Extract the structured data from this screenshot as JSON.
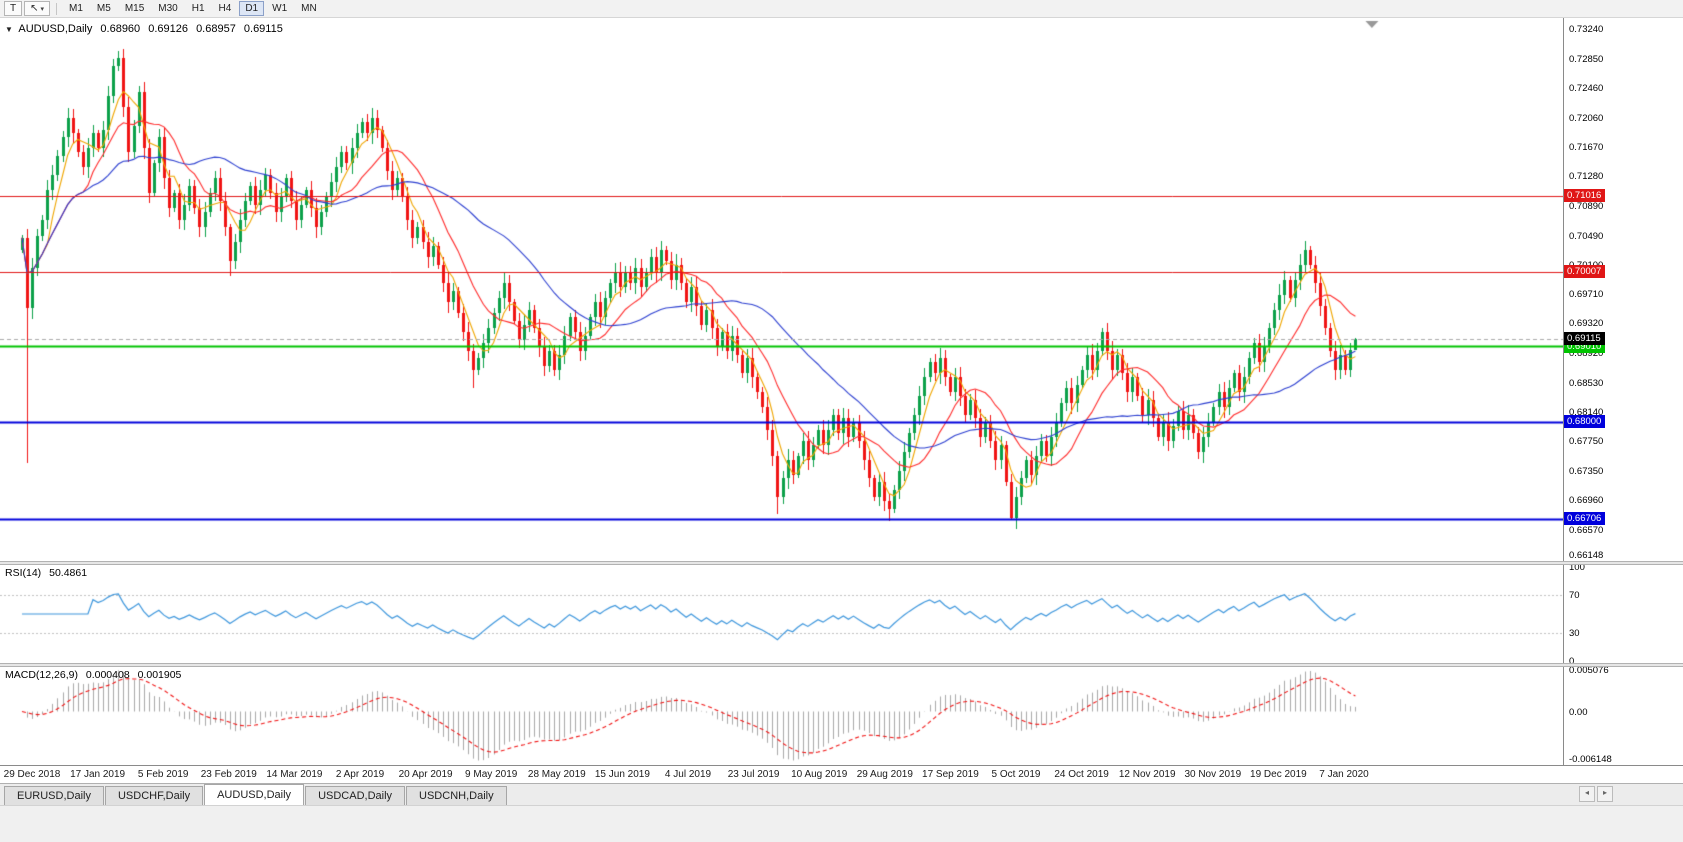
{
  "toolbar": {
    "chart_tool_label": "T",
    "timeframes": [
      "M1",
      "M5",
      "M15",
      "M30",
      "H1",
      "H4",
      "D1",
      "W1",
      "MN"
    ],
    "active_timeframe": "D1"
  },
  "icons": {
    "one_click_collapse": "▼",
    "cursor_tool": "↖",
    "caret_down": "▾",
    "tab_scroll_left": "◂",
    "tab_scroll_right": "▸"
  },
  "chart": {
    "symbol_period": "AUDUSD,Daily",
    "open": "0.68960",
    "high": "0.69126",
    "low": "0.68957",
    "close": "0.69115"
  },
  "chart_data": {
    "type": "candlestick",
    "symbol": "AUDUSD",
    "period": "Daily",
    "up_color": "#0ca14a",
    "down_color": "#f01414",
    "first_open": 0.703,
    "closes": [
      0.7046,
      0.6952,
      0.7005,
      0.7048,
      0.707,
      0.711,
      0.713,
      0.7155,
      0.718,
      0.7205,
      0.7185,
      0.716,
      0.714,
      0.7165,
      0.7185,
      0.7165,
      0.719,
      0.7235,
      0.7275,
      0.7285,
      0.722,
      0.716,
      0.7195,
      0.724,
      0.7165,
      0.7105,
      0.7145,
      0.718,
      0.7125,
      0.7085,
      0.7105,
      0.707,
      0.709,
      0.7115,
      0.7085,
      0.706,
      0.708,
      0.7105,
      0.7125,
      0.7095,
      0.706,
      0.7015,
      0.704,
      0.707,
      0.7095,
      0.7115,
      0.709,
      0.711,
      0.713,
      0.7105,
      0.708,
      0.71,
      0.7125,
      0.7095,
      0.707,
      0.709,
      0.711,
      0.7085,
      0.706,
      0.708,
      0.71,
      0.712,
      0.714,
      0.716,
      0.7145,
      0.7165,
      0.7185,
      0.72,
      0.7185,
      0.7205,
      0.719,
      0.7165,
      0.7135,
      0.711,
      0.7125,
      0.71,
      0.707,
      0.7045,
      0.706,
      0.704,
      0.702,
      0.7035,
      0.701,
      0.6985,
      0.696,
      0.6975,
      0.6945,
      0.692,
      0.6895,
      0.687,
      0.6885,
      0.6905,
      0.6925,
      0.6945,
      0.6965,
      0.6985,
      0.696,
      0.6935,
      0.691,
      0.693,
      0.695,
      0.6925,
      0.69,
      0.6875,
      0.6895,
      0.687,
      0.689,
      0.6915,
      0.694,
      0.692,
      0.6895,
      0.6915,
      0.694,
      0.696,
      0.694,
      0.6965,
      0.6985,
      0.7,
      0.698,
      0.7,
      0.6985,
      0.7005,
      0.698,
      0.7,
      0.702,
      0.7,
      0.703,
      0.7015,
      0.699,
      0.701,
      0.6985,
      0.696,
      0.698,
      0.6955,
      0.693,
      0.695,
      0.6925,
      0.69,
      0.692,
      0.6895,
      0.6915,
      0.689,
      0.6865,
      0.6885,
      0.686,
      0.684,
      0.682,
      0.679,
      0.6755,
      0.67,
      0.6725,
      0.675,
      0.673,
      0.6755,
      0.6775,
      0.675,
      0.677,
      0.679,
      0.677,
      0.679,
      0.681,
      0.6785,
      0.6805,
      0.678,
      0.68,
      0.6775,
      0.675,
      0.6725,
      0.67,
      0.672,
      0.6695,
      0.6685,
      0.671,
      0.6735,
      0.676,
      0.6785,
      0.681,
      0.6835,
      0.686,
      0.688,
      0.6865,
      0.6885,
      0.686,
      0.684,
      0.686,
      0.6835,
      0.681,
      0.683,
      0.6805,
      0.678,
      0.68,
      0.6775,
      0.675,
      0.677,
      0.672,
      0.6672,
      0.67,
      0.6725,
      0.675,
      0.673,
      0.6755,
      0.6775,
      0.6755,
      0.678,
      0.68,
      0.6825,
      0.6845,
      0.6825,
      0.685,
      0.687,
      0.689,
      0.687,
      0.6895,
      0.692,
      0.6895,
      0.687,
      0.689,
      0.6865,
      0.684,
      0.686,
      0.6835,
      0.681,
      0.683,
      0.6805,
      0.678,
      0.68,
      0.6775,
      0.6795,
      0.6815,
      0.679,
      0.681,
      0.6785,
      0.676,
      0.678,
      0.68,
      0.682,
      0.684,
      0.682,
      0.6845,
      0.6865,
      0.684,
      0.686,
      0.6885,
      0.6905,
      0.688,
      0.69,
      0.6925,
      0.695,
      0.697,
      0.699,
      0.6965,
      0.699,
      0.701,
      0.703,
      0.701,
      0.6985,
      0.6955,
      0.6925,
      0.6895,
      0.687,
      0.689,
      0.687,
      0.6896,
      0.69115
    ],
    "wick_overrides": {
      "1": {
        "low": 0.6745
      },
      "19": {
        "high": 0.7295
      },
      "41": {
        "low": 0.6995
      },
      "89": {
        "low": 0.6845
      },
      "149": {
        "low": 0.6678
      },
      "171": {
        "low": 0.6668
      },
      "195": {
        "low": 0.667
      },
      "253": {
        "high": 0.7042
      },
      "263": {
        "high": 0.69126,
        "low": 0.68957
      }
    },
    "price_axis": {
      "min": 0.6615,
      "max": 0.7339,
      "ticks": [
        "0.73240",
        "0.72850",
        "0.72460",
        "0.72060",
        "0.71670",
        "0.71280",
        "0.70890",
        "0.70490",
        "0.70100",
        "0.69710",
        "0.69320",
        "0.68920",
        "0.68530",
        "0.68140",
        "0.67750",
        "0.67350",
        "0.66960",
        "0.66570",
        "0.66148"
      ]
    },
    "x_labels": [
      "29 Dec 2018",
      "17 Jan 2019",
      "5 Feb 2019",
      "23 Feb 2019",
      "14 Mar 2019",
      "2 Apr 2019",
      "20 Apr 2019",
      "9 May 2019",
      "28 May 2019",
      "15 Jun 2019",
      "4 Jul 2019",
      "23 Jul 2019",
      "10 Aug 2019",
      "29 Aug 2019",
      "17 Sep 2019",
      "5 Oct 2019",
      "24 Oct 2019",
      "12 Nov 2019",
      "30 Nov 2019",
      "19 Dec 2019",
      "7 Jan 2020"
    ],
    "horizontal_lines": [
      {
        "label": "0.71016",
        "price": 0.71016,
        "color": "#e01616",
        "width": 1
      },
      {
        "label": "0.70007",
        "price": 0.70007,
        "color": "#e01616",
        "width": 1
      },
      {
        "label": "0.69010",
        "price": 0.6901,
        "color": "#00c400",
        "width": 2
      },
      {
        "label": "0.68000",
        "price": 0.68,
        "color": "#0000dc",
        "width": 2
      },
      {
        "label": "0.66706",
        "price": 0.66706,
        "color": "#0000dc",
        "width": 2
      }
    ],
    "current_price": {
      "label": "0.69115",
      "value": 0.69115,
      "line_color": "#aaaaaa",
      "tag_color": "#000000"
    },
    "moving_averages": [
      {
        "name": "fast-ma",
        "period": 5,
        "color": "#efa600"
      },
      {
        "name": "medium-ma",
        "period": 13,
        "color": "#ff2a2a"
      },
      {
        "name": "slow-ma",
        "period": 34,
        "color": "#2c3fd0"
      }
    ],
    "rsi": {
      "label": "RSI(14)",
      "value": "50.4861",
      "period": 14,
      "color": "#3d96dc",
      "levels": [
        70,
        30
      ],
      "axis_ticks": [
        "100",
        "70",
        "30",
        "0"
      ]
    },
    "macd": {
      "label": "MACD(12,26,9)",
      "value_main": "0.000408",
      "value_signal": "0.001905",
      "fast": 12,
      "slow": 26,
      "signal": 9,
      "histogram_color": "#a8a8a8",
      "signal_color": "#f01414",
      "axis_ticks": [
        "0.005076",
        "0.00",
        "-0.006148"
      ]
    }
  },
  "tabs": {
    "items": [
      "EURUSD,Daily",
      "USDCHF,Daily",
      "AUDUSD,Daily",
      "USDCAD,Daily",
      "USDCNH,Daily"
    ],
    "active_index": 2
  }
}
